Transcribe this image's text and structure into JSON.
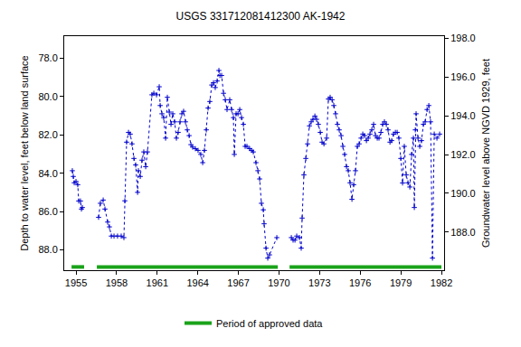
{
  "chart_data": {
    "type": "line",
    "title": "USGS 331712081412300 AK-1942",
    "x_label": "",
    "y_label": "Depth to water level, feet below land surface",
    "y2_label": "Groundwater level above NGVD 1929, feet",
    "xlim": [
      1954.13,
      1982.2
    ],
    "xticks": [
      1955,
      1958,
      1961,
      1964,
      1967,
      1970,
      1973,
      1976,
      1979,
      1982
    ],
    "ylim": [
      76.85,
      89.06
    ],
    "yticks": [
      {
        "value": 78,
        "label": "78.0"
      },
      {
        "value": 80,
        "label": "80.0"
      },
      {
        "value": 82,
        "label": "82.0"
      },
      {
        "value": 84,
        "label": "84.0"
      },
      {
        "value": 86,
        "label": "86.0"
      },
      {
        "value": 88,
        "label": "88.0"
      }
    ],
    "y2lim": [
      186.04,
      198.1
    ],
    "y2ticks": [
      {
        "value": 188,
        "label": "188.0"
      },
      {
        "value": 190,
        "label": "190.0"
      },
      {
        "value": 192,
        "label": "192.0"
      },
      {
        "value": 194,
        "label": "194.0"
      },
      {
        "value": 196,
        "label": "196.0"
      },
      {
        "value": 198,
        "label": "198.0"
      }
    ],
    "grid": false,
    "legend": "bottom",
    "series": [
      {
        "color": "#0000cc",
        "marker": "cross",
        "line_style": "dotted",
        "x": [
          1954.73,
          1954.8,
          1954.87,
          1955.0,
          1955.13,
          1955.2,
          1955.33,
          1955.4,
          1955.47,
          null,
          1956.67,
          1956.8,
          1957.01,
          1957.14,
          1957.34,
          1957.47,
          1957.61,
          1957.81,
          1958.07,
          1958.34,
          1958.54,
          1958.61,
          1958.74,
          1958.88,
          1959.01,
          1959.14,
          1959.28,
          1959.41,
          1959.55,
          1959.61,
          1959.75,
          1959.88,
          1960.01,
          1960.15,
          1960.28,
          1960.61,
          1960.75,
          1960.95,
          1961.15,
          1961.22,
          1961.35,
          1961.48,
          1961.62,
          1961.75,
          1961.89,
          1962.02,
          1962.15,
          1962.29,
          1962.42,
          1962.55,
          1962.69,
          1962.82,
          1962.95,
          1963.09,
          1963.22,
          1963.36,
          1963.49,
          1963.62,
          1963.82,
          1964.02,
          1964.22,
          1964.36,
          1964.49,
          1964.63,
          1964.76,
          1964.89,
          1965.03,
          1965.16,
          1965.29,
          1965.43,
          1965.56,
          1965.63,
          1965.76,
          1965.9,
          1966.03,
          1966.16,
          1966.36,
          1966.5,
          1966.63,
          1966.7,
          1966.83,
          1966.97,
          1967.1,
          1967.23,
          1967.37,
          1967.5,
          1967.63,
          1967.83,
          1967.97,
          1968.1,
          1968.3,
          1968.44,
          1968.57,
          1968.7,
          1968.84,
          1968.9,
          1969.04,
          1969.17,
          1969.3,
          1969.84,
          null,
          1970.91,
          1971.04,
          1971.18,
          1971.31,
          1971.51,
          1971.64,
          1971.71,
          1971.84,
          1971.98,
          1972.11,
          1972.25,
          1972.38,
          1972.51,
          1972.65,
          1972.78,
          1972.91,
          1973.05,
          1973.18,
          1973.32,
          1973.52,
          1973.65,
          1973.78,
          1973.92,
          1974.05,
          1974.18,
          1974.32,
          1974.45,
          1974.59,
          1974.72,
          1974.85,
          1974.99,
          1975.12,
          1975.25,
          1975.39,
          1975.52,
          1975.65,
          1975.79,
          1975.92,
          1976.06,
          1976.19,
          1976.32,
          1976.46,
          1976.59,
          1976.72,
          1976.86,
          1976.99,
          1977.13,
          1977.26,
          1977.39,
          1977.53,
          1977.66,
          1977.79,
          1977.93,
          1978.06,
          1978.2,
          1978.33,
          1978.46,
          1978.6,
          1978.73,
          1978.86,
          1979.0,
          1979.13,
          1979.26,
          1979.4,
          1979.53,
          1979.67,
          1979.8,
          1979.93,
          1980.0,
          1980.07,
          1980.13,
          1980.27,
          1980.4,
          1980.53,
          1980.67,
          1980.8,
          1980.94,
          1981.07,
          1981.2,
          1981.34,
          1981.47,
          1981.67,
          1981.87
        ],
        "values": [
          83.87,
          84.17,
          84.5,
          84.43,
          84.6,
          85.45,
          85.45,
          85.87,
          85.79,
          null,
          86.3,
          85.57,
          85.4,
          85.87,
          86.55,
          86.8,
          87.28,
          87.28,
          87.28,
          87.28,
          87.36,
          85.44,
          82.38,
          81.87,
          81.96,
          82.47,
          83.23,
          83.57,
          85.0,
          83.87,
          84.17,
          83.32,
          82.89,
          83.66,
          82.89,
          79.91,
          79.83,
          79.91,
          79.49,
          80.47,
          80.9,
          81.1,
          82.17,
          80.04,
          80.81,
          81.45,
          80.9,
          81.32,
          82.17,
          81.87,
          81.32,
          80.9,
          80.77,
          81.32,
          81.74,
          82.04,
          82.51,
          82.64,
          82.72,
          82.81,
          83.02,
          83.45,
          82.81,
          81.74,
          80.6,
          80.26,
          79.4,
          79.28,
          79.53,
          79.19,
          78.64,
          78.9,
          78.9,
          79.83,
          80.17,
          80.68,
          80.17,
          80.68,
          81.1,
          83.02,
          80.9,
          80.9,
          80.68,
          81.1,
          81.45,
          82.6,
          82.6,
          82.72,
          82.81,
          82.89,
          83.45,
          83.87,
          84.3,
          85.57,
          85.91,
          86.64,
          87.91,
          88.43,
          88.26,
          87.36,
          null,
          87.36,
          87.49,
          87.49,
          87.28,
          87.36,
          87.91,
          86.34,
          84.09,
          83.23,
          82.47,
          81.53,
          81.32,
          81.19,
          81.02,
          81.19,
          81.45,
          81.87,
          82.38,
          82.47,
          82.17,
          80.13,
          80.04,
          80.17,
          80.47,
          80.9,
          81.45,
          81.74,
          82.04,
          82.6,
          83.02,
          83.66,
          83.87,
          84.5,
          85.36,
          84.6,
          83.87,
          82.6,
          82.47,
          82.17,
          81.96,
          82.04,
          82.3,
          82.17,
          81.96,
          81.74,
          81.45,
          82.04,
          82.17,
          82.17,
          81.87,
          81.45,
          81.32,
          81.45,
          81.74,
          82.38,
          82.3,
          81.96,
          81.87,
          81.87,
          82.17,
          83.23,
          84.51,
          82.6,
          84.09,
          84.5,
          84.72,
          83.02,
          82.17,
          85.79,
          81.74,
          80.9,
          82.17,
          82.6,
          82.3,
          81.45,
          81.32,
          80.68,
          80.47,
          81.32,
          88.43,
          81.96,
          82.17,
          81.96
        ]
      },
      {
        "name": "Period of approved data",
        "color": "#1aa31a",
        "line_style": "solid",
        "x": [
          1954.67,
          1955.6,
          null,
          1956.54,
          1969.91,
          null,
          1970.78,
          1982.0
        ],
        "values": [
          88.89,
          88.89,
          null,
          88.89,
          88.89,
          null,
          88.89,
          88.89
        ]
      }
    ]
  }
}
